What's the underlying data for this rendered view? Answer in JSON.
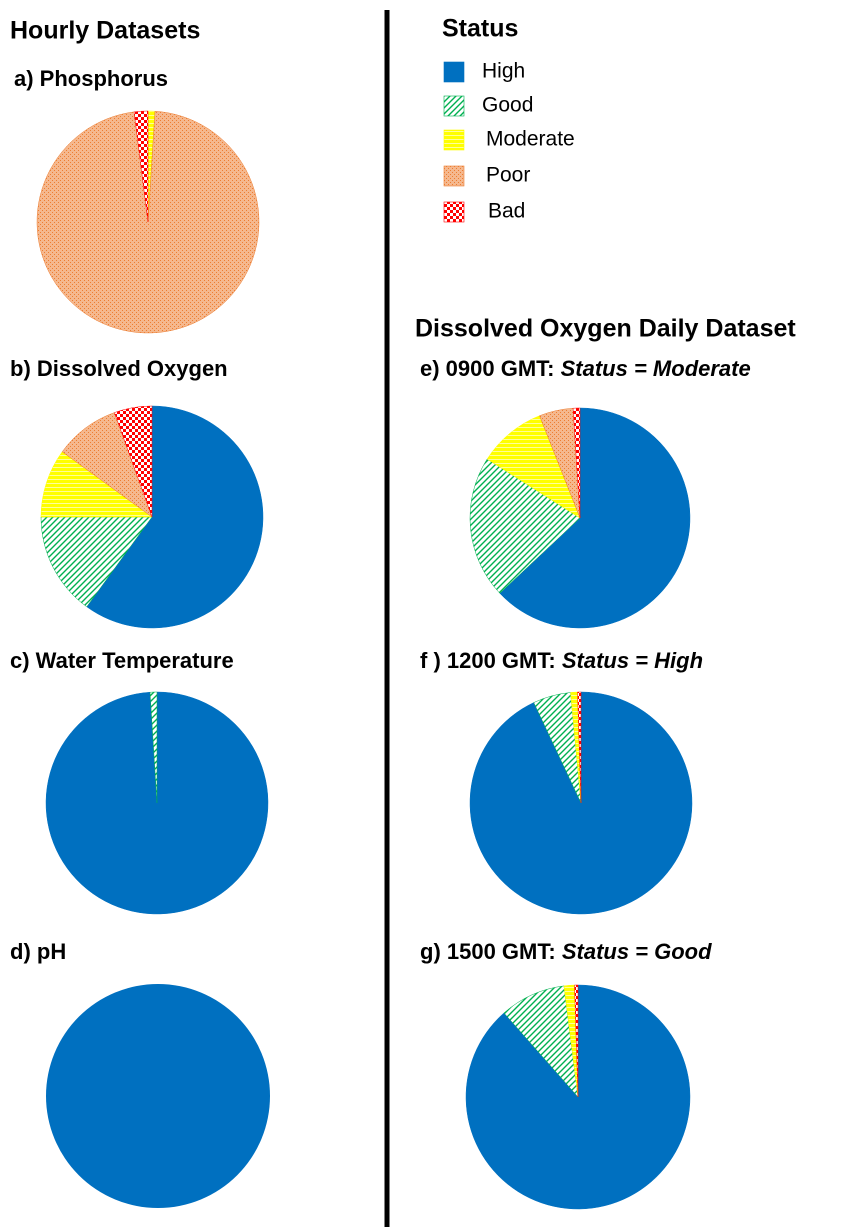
{
  "headers": {
    "left": "Hourly Datasets",
    "right": "Dissolved Oxygen Daily Dataset"
  },
  "legend": {
    "title": "Status",
    "categories": [
      "High",
      "Good",
      "Moderate",
      "Poor",
      "Bad"
    ],
    "colors": [
      "#0070c0",
      "#00b050",
      "#ffff00",
      "#ed7d31",
      "#ff0000"
    ],
    "patterns": [
      "solid",
      "diagonal",
      "horizontal",
      "dots",
      "checker"
    ]
  },
  "chart_data": [
    {
      "type": "pie",
      "title": "a) Phosphorus",
      "values": [
        0,
        0,
        1,
        97,
        2
      ]
    },
    {
      "type": "pie",
      "title": "b) Dissolved Oxygen",
      "values": [
        60,
        15,
        10,
        9.5,
        5.5
      ]
    },
    {
      "type": "pie",
      "title": "c) Water Temperature",
      "values": [
        99,
        1,
        0,
        0,
        0
      ]
    },
    {
      "type": "pie",
      "title": "d) pH",
      "values": [
        100,
        0,
        0,
        0,
        0
      ]
    },
    {
      "type": "pie",
      "title": "e) 0900 GMT:",
      "subtitle": "Status = Moderate",
      "values": [
        63,
        21,
        10,
        5,
        1
      ]
    },
    {
      "type": "pie",
      "title": "f ) 1200 GMT:",
      "subtitle": "Status = High",
      "values": [
        93,
        5.5,
        1,
        0,
        0.5
      ]
    },
    {
      "type": "pie",
      "title": "g) 1500 GMT:",
      "subtitle": "Status = Good",
      "values": [
        88.5,
        9.5,
        1.5,
        0,
        0.5
      ]
    }
  ]
}
